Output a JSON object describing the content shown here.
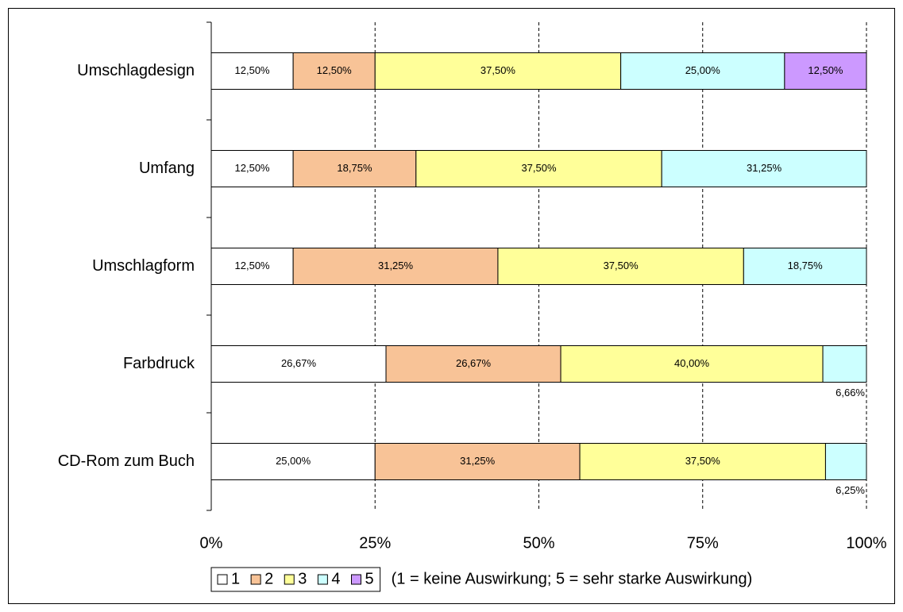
{
  "chart_data": {
    "type": "stacked_barh",
    "categories": [
      "Umschlagdesign",
      "Umfang",
      "Umschlagform",
      "Farbdruck",
      "CD-Rom zum Buch"
    ],
    "series": [
      {
        "name": "1",
        "color": "#ffffff",
        "values": [
          12.5,
          12.5,
          12.5,
          26.67,
          25
        ],
        "value_labels": [
          "12,50%",
          "12,50%",
          "12,50%",
          "26,67%",
          "25,00%"
        ]
      },
      {
        "name": "2",
        "color": "#f8c397",
        "values": [
          12.5,
          18.75,
          31.25,
          26.67,
          31.25
        ],
        "value_labels": [
          "12,50%",
          "18,75%",
          "31,25%",
          "26,67%",
          "31,25%"
        ]
      },
      {
        "name": "3",
        "color": "#ffff99",
        "values": [
          37.5,
          37.5,
          37.5,
          40,
          37.5
        ],
        "value_labels": [
          "37,50%",
          "37,50%",
          "37,50%",
          "40,00%",
          "37,50%"
        ]
      },
      {
        "name": "4",
        "color": "#ccffff",
        "values": [
          25,
          31.25,
          18.75,
          6.66,
          6.25
        ],
        "value_labels": [
          "25,00%",
          "31,25%",
          "18,75%",
          "6,66%",
          "6,25%"
        ]
      },
      {
        "name": "5",
        "color": "#cc99ff",
        "values": [
          12.5,
          null,
          null,
          null,
          null
        ],
        "value_labels": [
          "12,50%",
          null,
          null,
          null,
          null
        ]
      }
    ],
    "xlim": [
      0,
      100
    ],
    "xticks": [
      {
        "value": 0,
        "label": "0%"
      },
      {
        "value": 25,
        "label": "25%"
      },
      {
        "value": 50,
        "label": "50%"
      },
      {
        "value": 75,
        "label": "75%"
      },
      {
        "value": 100,
        "label": "100%"
      }
    ],
    "grid": true,
    "legend": "bottom",
    "annotation": "(1 = keine Auswirkung; 5 = sehr starke Auswirkung)"
  }
}
